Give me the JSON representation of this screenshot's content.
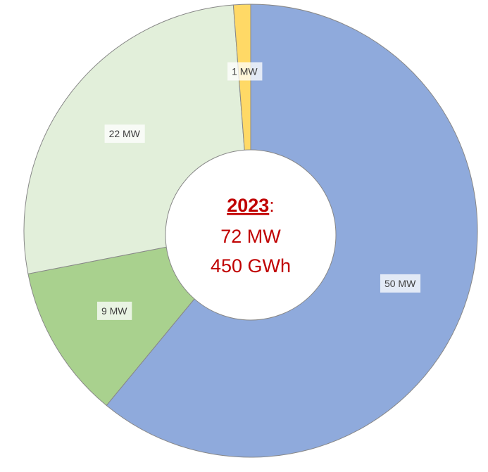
{
  "chart_data": {
    "type": "donut",
    "categories": [
      null,
      null,
      null,
      null
    ],
    "values": [
      50,
      9,
      22,
      1
    ],
    "value_labels": [
      "50 MW",
      "9 MW",
      "22 MW",
      "1 MW"
    ],
    "colors": [
      "#8faadc",
      "#a9d18e",
      "#e2efda",
      "#ffd966"
    ],
    "center_label": {
      "year": "2023",
      "suffix": ":",
      "lines": [
        "72 MW",
        "450 GWh"
      ]
    }
  }
}
